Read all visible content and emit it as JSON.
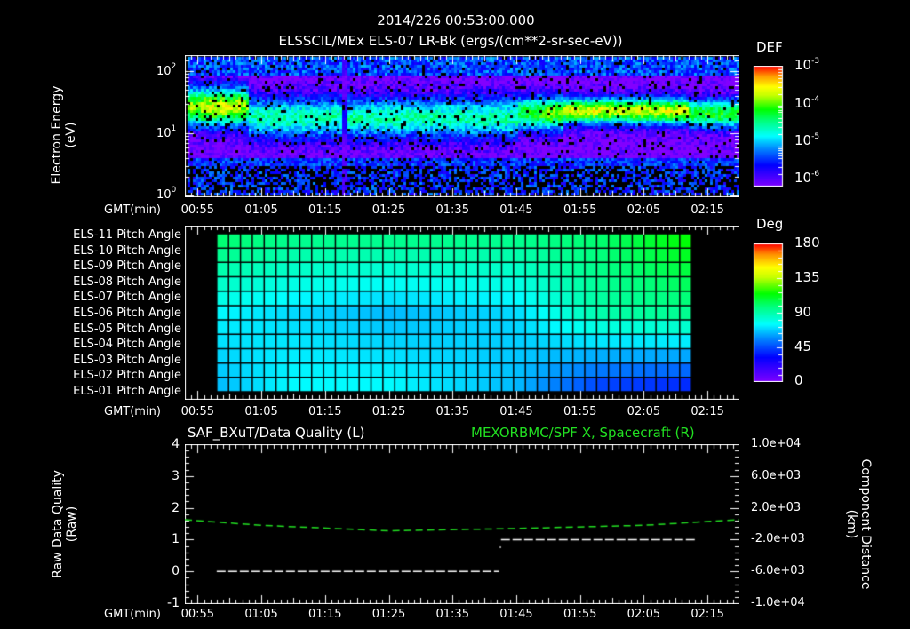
{
  "header": {
    "timestamp": "2014/226 00:53:00.000",
    "subtitle": "ELSSCIL/MEx ELS-07 LR-Bk  (ergs/(cm**2-sr-sec-eV))"
  },
  "time_axis": {
    "label": "GMT(min)",
    "ticks": [
      "00:55",
      "01:05",
      "01:15",
      "01:25",
      "01:35",
      "01:45",
      "01:55",
      "02:05",
      "02:15"
    ]
  },
  "panel1": {
    "ylabel": "Electron Energy",
    "yunit": "(eV)",
    "yticks": [
      {
        "base": "10",
        "exp": "2"
      },
      {
        "base": "10",
        "exp": "1"
      },
      {
        "base": "10",
        "exp": "0"
      }
    ],
    "colorbar": {
      "title": "DEF",
      "ticks": [
        {
          "base": "10",
          "exp": "-3"
        },
        {
          "base": "10",
          "exp": "-4"
        },
        {
          "base": "10",
          "exp": "-5"
        },
        {
          "base": "10",
          "exp": "-6"
        }
      ]
    }
  },
  "panel2": {
    "rows": [
      "ELS-11 Pitch Angle",
      "ELS-10 Pitch Angle",
      "ELS-09 Pitch Angle",
      "ELS-08 Pitch Angle",
      "ELS-07 Pitch Angle",
      "ELS-06 Pitch Angle",
      "ELS-05 Pitch Angle",
      "ELS-04 Pitch Angle",
      "ELS-03 Pitch Angle",
      "ELS-02 Pitch Angle",
      "ELS-01 Pitch Angle"
    ],
    "colorbar": {
      "title": "Deg",
      "ticks": [
        "180",
        "135",
        "90",
        "45",
        "0"
      ]
    }
  },
  "panel3": {
    "left_title": "SAF_BXuT/Data Quality (L)",
    "right_title": "MEXORBMC/SPF X, Spacecraft (R)",
    "ylabel_left": "Raw Data Quality",
    "yunit_left": "(Raw)",
    "yticks_left": [
      "4",
      "3",
      "2",
      "1",
      "0",
      "-1"
    ],
    "ylabel_right": "Component Distance",
    "yunit_right": "(km)",
    "yticks_right": [
      "1.0e+04",
      "6.0e+03",
      "2.0e+03",
      "-2.0e+03",
      "-6.0e+03",
      "-1.0e+04"
    ],
    "colors": {
      "right_series": "#22e022",
      "left_series": "#ffffff"
    }
  },
  "chart_data": [
    {
      "type": "heatmap",
      "title": "ELSSCIL/MEx ELS-07 LR-Bk (ergs/(cm**2-sr-sec-eV))",
      "xlabel": "GMT(min)",
      "ylabel": "Electron Energy (eV)",
      "x_ticks": [
        "00:55",
        "01:05",
        "01:15",
        "01:25",
        "01:35",
        "01:45",
        "01:55",
        "02:05",
        "02:15"
      ],
      "y_scale": "log",
      "ylim": [
        1,
        170
      ],
      "colorbar": {
        "label": "DEF",
        "scale": "log",
        "range": [
          1e-06,
          0.001
        ]
      },
      "features": [
        {
          "time": "00:53-01:03",
          "energy_eV": "15-50",
          "level": 0.00015
        },
        {
          "time": "01:04-01:44",
          "energy_eV": "10-40",
          "level": 3e-05
        },
        {
          "time": "01:18",
          "note": "vertical gap/dropout"
        },
        {
          "time": "01:46-02:12",
          "energy_eV": "15-40",
          "level": 0.0003
        },
        {
          "time": "02:13-02:20",
          "energy_eV": "15-35",
          "level": 8e-05
        }
      ]
    },
    {
      "type": "heatmap",
      "title": "Pitch Angle per anode",
      "xlabel": "GMT(min)",
      "y_categories": [
        "ELS-11",
        "ELS-10",
        "ELS-09",
        "ELS-08",
        "ELS-07",
        "ELS-06",
        "ELS-05",
        "ELS-04",
        "ELS-03",
        "ELS-02",
        "ELS-01"
      ],
      "colorbar": {
        "label": "Deg",
        "range": [
          0,
          180
        ]
      },
      "data_range": [
        "00:58",
        "02:13"
      ],
      "approx_values_deg": {
        "ELS-11": [
          100,
          95,
          95,
          95,
          100,
          115
        ],
        "ELS-06": [
          75,
          70,
          65,
          70,
          90,
          95
        ],
        "ELS-01": [
          65,
          75,
          75,
          65,
          45,
          40
        ]
      }
    },
    {
      "type": "line",
      "title": "SAF_BXuT/Data Quality (L) ; MEXORBMC/SPF X, Spacecraft (R)",
      "xlabel": "GMT(min)",
      "series": [
        {
          "name": "Data Quality (L)",
          "axis": "left",
          "x": [
            "00:58",
            "01:42",
            "01:43",
            "02:13"
          ],
          "values": [
            0,
            0,
            1,
            1
          ]
        },
        {
          "name": "SPF X Spacecraft (R)",
          "axis": "right",
          "x": [
            "00:53",
            "01:05",
            "01:25",
            "01:45",
            "02:05",
            "02:20"
          ],
          "values": [
            500,
            -200,
            -900,
            -600,
            -200,
            500
          ]
        }
      ],
      "ylim_left": [
        -1,
        4
      ],
      "ylim_right": [
        -10000,
        10000
      ]
    }
  ]
}
